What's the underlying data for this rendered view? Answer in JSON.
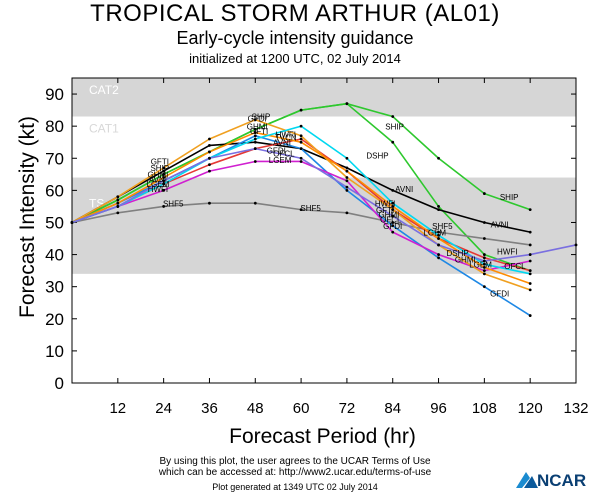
{
  "header": {
    "title": "TROPICAL STORM ARTHUR (AL01)",
    "subtitle": "Early-cycle intensity guidance",
    "init": "initialized at 1200 UTC, 02 July 2014"
  },
  "footer": {
    "line1": "By using this plot, the user agrees to the UCAR Terms of Use",
    "line2": "which can be accessed at: http://www2.ucar.edu/terms-of-use",
    "line3": "Plot generated at 1349 UTC  02 July 2014",
    "logo_text": "NCAR"
  },
  "chart_data": {
    "type": "line",
    "xlabel": "Forecast Period (hr)",
    "ylabel": "Forecast Intensity (kt)",
    "xlim": [
      0,
      132
    ],
    "ylim": [
      0,
      95
    ],
    "xticks": [
      12,
      24,
      36,
      48,
      60,
      72,
      84,
      96,
      108,
      120,
      132
    ],
    "yticks": [
      0,
      10,
      20,
      30,
      40,
      50,
      60,
      70,
      80,
      90
    ],
    "grid": false,
    "bands": [
      {
        "label": "TS",
        "from": 34,
        "to": 64,
        "color": "#d6d6d6"
      },
      {
        "label": "CAT1",
        "from": 64,
        "to": 83,
        "color": "#ffffff"
      },
      {
        "label": "CAT2",
        "from": 83,
        "to": 95,
        "color": "#d6d6d6"
      }
    ],
    "series": [
      {
        "name": "SHIP",
        "color": "#2ec82e",
        "x": [
          0,
          12,
          24,
          36,
          48,
          60,
          72,
          84,
          96,
          108,
          120
        ],
        "y": [
          50,
          57,
          65,
          72,
          79,
          85,
          87,
          83,
          70,
          59,
          54
        ]
      },
      {
        "name": "DSHP",
        "color": "#2ec82e",
        "x": [
          0,
          12,
          24,
          36,
          48,
          60,
          72,
          84,
          96,
          108,
          120
        ],
        "y": [
          50,
          57,
          65,
          72,
          79,
          85,
          87,
          75,
          55,
          40,
          35
        ]
      },
      {
        "name": "SHF5",
        "color": "#808080",
        "x": [
          0,
          12,
          24,
          36,
          48,
          60,
          72,
          84,
          96,
          108,
          120
        ],
        "y": [
          50,
          53,
          55,
          56,
          56,
          54,
          53,
          50,
          47,
          45,
          43
        ]
      },
      {
        "name": "AVNI",
        "color": "#000000",
        "x": [
          0,
          12,
          24,
          36,
          48,
          60,
          72,
          84,
          96,
          108,
          120
        ],
        "y": [
          50,
          58,
          66,
          74,
          75,
          73,
          67,
          60,
          54,
          50,
          47
        ]
      },
      {
        "name": "GFDI",
        "color": "#1e88e5",
        "x": [
          0,
          12,
          24,
          36,
          48,
          60,
          72,
          84,
          96,
          108,
          120
        ],
        "y": [
          50,
          56,
          63,
          70,
          77,
          73,
          60,
          49,
          39,
          30,
          21
        ]
      },
      {
        "name": "HWFI",
        "color": "#e53935",
        "x": [
          0,
          12,
          24,
          36,
          48,
          60,
          72,
          84,
          96,
          108,
          120
        ],
        "y": [
          50,
          55,
          62,
          68,
          73,
          76,
          66,
          54,
          45,
          39,
          35
        ]
      },
      {
        "name": "LGEM",
        "color": "#d020d0",
        "x": [
          0,
          12,
          24,
          36,
          48,
          60,
          72,
          84,
          96,
          108,
          120
        ],
        "y": [
          50,
          55,
          60,
          66,
          69,
          69,
          63,
          47,
          40,
          35,
          38
        ]
      },
      {
        "name": "GFTI",
        "color": "#f0a020",
        "x": [
          0,
          12,
          24,
          36,
          48,
          60,
          72,
          84,
          96,
          108,
          120
        ],
        "y": [
          50,
          58,
          67,
          76,
          82,
          77,
          64,
          54,
          43,
          34,
          29
        ]
      },
      {
        "name": "GHMI",
        "color": "#ff8c00",
        "x": [
          0,
          12,
          24,
          36,
          48,
          60,
          72,
          84,
          96,
          108,
          120
        ],
        "y": [
          50,
          56,
          64,
          72,
          78,
          75,
          66,
          55,
          45,
          36,
          31
        ]
      },
      {
        "name": "OFCL",
        "color": "#00d8f0",
        "x": [
          0,
          12,
          24,
          36,
          48,
          60,
          72,
          84,
          96,
          108,
          120
        ],
        "y": [
          50,
          55,
          62,
          70,
          76,
          80,
          70,
          56,
          46,
          37,
          34
        ]
      },
      {
        "name": "TVCN",
        "color": "#7a6fe0",
        "x": [
          0,
          12,
          24,
          36,
          48,
          60,
          72,
          84,
          96,
          108,
          120,
          132
        ],
        "y": [
          50,
          55,
          63,
          70,
          73,
          70,
          61,
          52,
          43,
          38,
          40,
          43
        ]
      }
    ],
    "annotations": [
      {
        "text": "SHIP",
        "x": 49.5,
        "y": 82,
        "color": "#000000"
      },
      {
        "text": "GFDI",
        "x": 48.5,
        "y": 81.5,
        "color": "#000000"
      },
      {
        "text": "GHMI",
        "x": 48.5,
        "y": 79,
        "color": "#000000"
      },
      {
        "text": "GFTI",
        "x": 49,
        "y": 77.5,
        "color": "#000000"
      },
      {
        "text": "HWFI",
        "x": 56,
        "y": 76.5,
        "color": "#000000"
      },
      {
        "text": "TVCN",
        "x": 56,
        "y": 75.5,
        "color": "#000000"
      },
      {
        "text": "AVNI",
        "x": 55,
        "y": 74,
        "color": "#000000"
      },
      {
        "text": "GFDI",
        "x": 53.5,
        "y": 71.5,
        "color": "#000000"
      },
      {
        "text": "OFCL",
        "x": 55.5,
        "y": 70.5,
        "color": "#000000"
      },
      {
        "text": "LGEM",
        "x": 54.5,
        "y": 68.5,
        "color": "#000000"
      },
      {
        "text": "GFTI",
        "x": 23,
        "y": 68,
        "color": "#000000"
      },
      {
        "text": "SHIP",
        "x": 23,
        "y": 66,
        "color": "#000000"
      },
      {
        "text": "GHMI",
        "x": 22.5,
        "y": 64,
        "color": "#000000"
      },
      {
        "text": "AVNI",
        "x": 22.5,
        "y": 62.5,
        "color": "#000000"
      },
      {
        "text": "LGEM",
        "x": 22.5,
        "y": 61,
        "color": "#000000"
      },
      {
        "text": "HWFI",
        "x": 22.5,
        "y": 59.5,
        "color": "#000000"
      },
      {
        "text": "SHF5",
        "x": 26.5,
        "y": 55,
        "color": "#000000"
      },
      {
        "text": "SHF5",
        "x": 62.5,
        "y": 53.5,
        "color": "#000000"
      },
      {
        "text": "SHIP",
        "x": 84.5,
        "y": 79,
        "color": "#000000"
      },
      {
        "text": "DSHP",
        "x": 80,
        "y": 70,
        "color": "#000000"
      },
      {
        "text": "AVNI",
        "x": 87,
        "y": 59.5,
        "color": "#000000"
      },
      {
        "text": "AVNI",
        "x": 112,
        "y": 48.5,
        "color": "#000000"
      },
      {
        "text": "SHF5",
        "x": 97,
        "y": 48,
        "color": "#000000"
      },
      {
        "text": "GFDI",
        "x": 84,
        "y": 48,
        "color": "#000000"
      },
      {
        "text": "LGEM",
        "x": 95,
        "y": 46,
        "color": "#000000"
      },
      {
        "text": "HWFI",
        "x": 82,
        "y": 55,
        "color": "#000000"
      },
      {
        "text": "GFTI",
        "x": 82,
        "y": 53,
        "color": "#000000"
      },
      {
        "text": "GHMI",
        "x": 83,
        "y": 51.5,
        "color": "#000000"
      },
      {
        "text": "OFCL",
        "x": 83.5,
        "y": 50,
        "color": "#000000"
      },
      {
        "text": "DSHP",
        "x": 101,
        "y": 39.5,
        "color": "#000000"
      },
      {
        "text": "GHMI",
        "x": 103,
        "y": 37.5,
        "color": "#000000"
      },
      {
        "text": "LGEM",
        "x": 107,
        "y": 36,
        "color": "#000000"
      },
      {
        "text": "HWFI",
        "x": 114,
        "y": 40,
        "color": "#000000"
      },
      {
        "text": "OFCL",
        "x": 116,
        "y": 35.5,
        "color": "#000000"
      },
      {
        "text": "SHIP",
        "x": 114.5,
        "y": 57,
        "color": "#000000"
      },
      {
        "text": "GFDI",
        "x": 112,
        "y": 27,
        "color": "#000000"
      }
    ]
  }
}
